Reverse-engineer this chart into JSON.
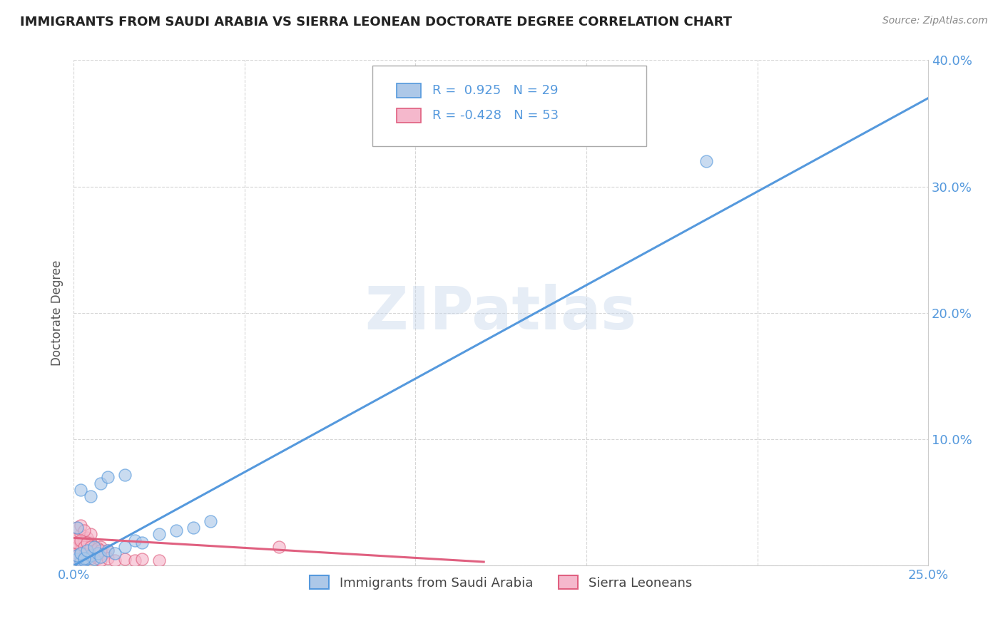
{
  "title": "IMMIGRANTS FROM SAUDI ARABIA VS SIERRA LEONEAN DOCTORATE DEGREE CORRELATION CHART",
  "source_text": "Source: ZipAtlas.com",
  "ylabel": "Doctorate Degree",
  "xlim": [
    0.0,
    0.25
  ],
  "ylim": [
    0.0,
    0.4
  ],
  "xticks": [
    0.0,
    0.05,
    0.1,
    0.15,
    0.2,
    0.25
  ],
  "yticks": [
    0.0,
    0.1,
    0.2,
    0.3,
    0.4
  ],
  "xtick_labels": [
    "0.0%",
    "",
    "",
    "",
    "",
    "25.0%"
  ],
  "ytick_labels": [
    "",
    "10.0%",
    "20.0%",
    "30.0%",
    "40.0%"
  ],
  "watermark": "ZIPatlas",
  "legend_entry1": "R =  0.925   N = 29",
  "legend_entry2": "R = -0.428   N = 53",
  "legend_label1": "Immigrants from Saudi Arabia",
  "legend_label2": "Sierra Leoneans",
  "blue_color": "#adc8e8",
  "pink_color": "#f5b8cc",
  "blue_line_color": "#5599dd",
  "pink_line_color": "#e06080",
  "title_color": "#222222",
  "axis_tick_color": "#5599dd",
  "ylabel_color": "#555555",
  "background_color": "#ffffff",
  "saudi_points": [
    [
      0.001,
      0.005
    ],
    [
      0.002,
      0.003
    ],
    [
      0.003,
      0.004
    ],
    [
      0.004,
      0.006
    ],
    [
      0.005,
      0.008
    ],
    [
      0.006,
      0.005
    ],
    [
      0.007,
      0.01
    ],
    [
      0.008,
      0.007
    ],
    [
      0.01,
      0.012
    ],
    [
      0.012,
      0.01
    ],
    [
      0.015,
      0.015
    ],
    [
      0.018,
      0.02
    ],
    [
      0.02,
      0.018
    ],
    [
      0.025,
      0.025
    ],
    [
      0.03,
      0.028
    ],
    [
      0.002,
      0.06
    ],
    [
      0.035,
      0.03
    ],
    [
      0.005,
      0.055
    ],
    [
      0.008,
      0.065
    ],
    [
      0.01,
      0.07
    ],
    [
      0.015,
      0.072
    ],
    [
      0.04,
      0.035
    ],
    [
      0.001,
      0.008
    ],
    [
      0.002,
      0.01
    ],
    [
      0.003,
      0.006
    ],
    [
      0.004,
      0.012
    ],
    [
      0.006,
      0.015
    ],
    [
      0.185,
      0.32
    ],
    [
      0.001,
      0.03
    ]
  ],
  "sierra_points": [
    [
      0.001,
      0.005
    ],
    [
      0.002,
      0.008
    ],
    [
      0.003,
      0.006
    ],
    [
      0.004,
      0.01
    ],
    [
      0.005,
      0.008
    ],
    [
      0.006,
      0.012
    ],
    [
      0.007,
      0.008
    ],
    [
      0.008,
      0.01
    ],
    [
      0.001,
      0.015
    ],
    [
      0.002,
      0.018
    ],
    [
      0.003,
      0.012
    ],
    [
      0.004,
      0.015
    ],
    [
      0.005,
      0.018
    ],
    [
      0.006,
      0.015
    ],
    [
      0.007,
      0.012
    ],
    [
      0.008,
      0.015
    ],
    [
      0.009,
      0.01
    ],
    [
      0.01,
      0.012
    ],
    [
      0.001,
      0.022
    ],
    [
      0.002,
      0.025
    ],
    [
      0.003,
      0.02
    ],
    [
      0.004,
      0.022
    ],
    [
      0.005,
      0.025
    ],
    [
      0.001,
      0.03
    ],
    [
      0.002,
      0.032
    ],
    [
      0.003,
      0.028
    ],
    [
      0.001,
      0.008
    ],
    [
      0.002,
      0.01
    ],
    [
      0.003,
      0.005
    ],
    [
      0.004,
      0.008
    ],
    [
      0.005,
      0.006
    ],
    [
      0.006,
      0.008
    ],
    [
      0.007,
      0.006
    ],
    [
      0.008,
      0.004
    ],
    [
      0.01,
      0.006
    ],
    [
      0.012,
      0.004
    ],
    [
      0.015,
      0.005
    ],
    [
      0.018,
      0.004
    ],
    [
      0.02,
      0.005
    ],
    [
      0.025,
      0.004
    ],
    [
      0.001,
      0.01
    ],
    [
      0.002,
      0.012
    ],
    [
      0.003,
      0.008
    ],
    [
      0.004,
      0.01
    ],
    [
      0.06,
      0.015
    ],
    [
      0.001,
      0.018
    ],
    [
      0.002,
      0.02
    ],
    [
      0.003,
      0.015
    ],
    [
      0.004,
      0.018
    ],
    [
      0.005,
      0.015
    ],
    [
      0.006,
      0.012
    ],
    [
      0.007,
      0.014
    ],
    [
      0.008,
      0.012
    ]
  ],
  "blue_trendline": [
    0.0,
    0.0,
    0.25,
    0.37
  ],
  "pink_trendline": [
    0.0,
    0.022,
    0.12,
    0.003
  ]
}
